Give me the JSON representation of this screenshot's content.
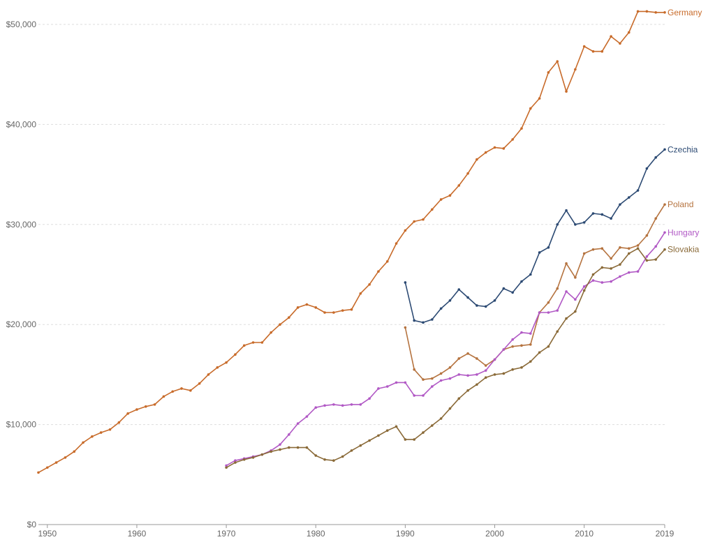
{
  "chart_data": {
    "type": "line",
    "title": "",
    "xlabel": "",
    "ylabel": "",
    "xlim": [
      1949,
      2019
    ],
    "ylim": [
      0,
      50000
    ],
    "grid": "horizontal dashed",
    "legend": "inline labels at line ends",
    "x_ticks": [
      1950,
      1960,
      1970,
      1980,
      1990,
      2000,
      2010,
      2019
    ],
    "y_ticks": [
      0,
      10000,
      20000,
      30000,
      40000,
      50000
    ],
    "y_tick_labels": [
      "$0",
      "$10,000",
      "$20,000",
      "$30,000",
      "$40,000",
      "$50,000"
    ],
    "series": [
      {
        "name": "Germany",
        "color": "#c86b2a",
        "x": [
          1949,
          1950,
          1951,
          1952,
          1953,
          1954,
          1955,
          1956,
          1957,
          1958,
          1959,
          1960,
          1961,
          1962,
          1963,
          1964,
          1965,
          1966,
          1967,
          1968,
          1969,
          1970,
          1971,
          1972,
          1973,
          1974,
          1975,
          1976,
          1977,
          1978,
          1979,
          1980,
          1981,
          1982,
          1983,
          1984,
          1985,
          1986,
          1987,
          1988,
          1989,
          1990,
          1991,
          1992,
          1993,
          1994,
          1995,
          1996,
          1997,
          1998,
          1999,
          2000,
          2001,
          2002,
          2003,
          2004,
          2005,
          2006,
          2007,
          2008,
          2009,
          2010,
          2011,
          2012,
          2013,
          2014,
          2015,
          2016,
          2017,
          2018,
          2019
        ],
        "values": [
          5200,
          5700,
          6200,
          6700,
          7300,
          8200,
          8800,
          9200,
          9500,
          10200,
          11100,
          11500,
          11800,
          12000,
          12800,
          13300,
          13600,
          13400,
          14100,
          15000,
          15700,
          16200,
          17000,
          17900,
          18200,
          18200,
          19200,
          20000,
          20700,
          21700,
          22000,
          21700,
          21200,
          21200,
          21400,
          21500,
          23100,
          24000,
          25300,
          26300,
          28100,
          29400,
          30300,
          30500,
          31500,
          32500,
          32900,
          33900,
          35100,
          36500,
          37200,
          37700,
          37600,
          38500,
          39600,
          41600,
          42600,
          45200,
          46300,
          43300,
          45500,
          47800,
          47300,
          47300,
          48800,
          48100,
          49200,
          51300,
          51300,
          51200,
          51200
        ]
      },
      {
        "name": "Czechia",
        "color": "#2c4a73",
        "x": [
          1990,
          1991,
          1992,
          1993,
          1994,
          1995,
          1996,
          1997,
          1998,
          1999,
          2000,
          2001,
          2002,
          2003,
          2004,
          2005,
          2006,
          2007,
          2008,
          2009,
          2010,
          2011,
          2012,
          2013,
          2014,
          2015,
          2016,
          2017,
          2018,
          2019
        ],
        "values": [
          24200,
          20400,
          20200,
          20500,
          21600,
          22400,
          23500,
          22700,
          21900,
          21800,
          22400,
          23600,
          23200,
          24300,
          25000,
          27200,
          27700,
          30000,
          31400,
          30000,
          30200,
          31100,
          31000,
          30600,
          32000,
          32700,
          33400,
          35600,
          36700,
          37500
        ]
      },
      {
        "name": "Poland",
        "color": "#b5733f",
        "x": [
          1990,
          1991,
          1992,
          1993,
          1994,
          1995,
          1996,
          1997,
          1998,
          1999,
          2000,
          2001,
          2002,
          2003,
          2004,
          2005,
          2006,
          2007,
          2008,
          2009,
          2010,
          2011,
          2012,
          2013,
          2014,
          2015,
          2016,
          2017,
          2018,
          2019
        ],
        "values": [
          19700,
          15500,
          14500,
          14600,
          15100,
          15700,
          16600,
          17100,
          16600,
          15900,
          16500,
          17500,
          17800,
          17900,
          18000,
          21200,
          22200,
          23600,
          26100,
          24700,
          27100,
          27500,
          27600,
          26600,
          27700,
          27600,
          27900,
          28900,
          30600,
          32000
        ]
      },
      {
        "name": "Hungary",
        "color": "#b159c5",
        "x": [
          1970,
          1971,
          1972,
          1973,
          1974,
          1975,
          1976,
          1977,
          1978,
          1979,
          1980,
          1981,
          1982,
          1983,
          1984,
          1985,
          1986,
          1987,
          1988,
          1989,
          1990,
          1991,
          1992,
          1993,
          1994,
          1995,
          1996,
          1997,
          1998,
          1999,
          2000,
          2001,
          2002,
          2003,
          2004,
          2005,
          2006,
          2007,
          2008,
          2009,
          2010,
          2011,
          2012,
          2013,
          2014,
          2015,
          2016,
          2017,
          2018,
          2019
        ],
        "values": [
          5900,
          6400,
          6600,
          6800,
          7000,
          7400,
          8000,
          9000,
          10100,
          10800,
          11700,
          11900,
          12000,
          11900,
          12000,
          12000,
          12600,
          13600,
          13800,
          14200,
          14200,
          12900,
          12900,
          13800,
          14400,
          14600,
          15000,
          14900,
          15000,
          15400,
          16500,
          17500,
          18500,
          19200,
          19100,
          21200,
          21200,
          21400,
          23300,
          22500,
          23800,
          24400,
          24200,
          24300,
          24800,
          25200,
          25300,
          26800,
          27800,
          29200
        ]
      },
      {
        "name": "Slovakia",
        "color": "#8a6a38",
        "x": [
          1970,
          1971,
          1972,
          1973,
          1974,
          1975,
          1976,
          1977,
          1978,
          1979,
          1980,
          1981,
          1982,
          1983,
          1984,
          1985,
          1986,
          1987,
          1988,
          1989,
          1990,
          1991,
          1992,
          1993,
          1994,
          1995,
          1996,
          1997,
          1998,
          1999,
          2000,
          2001,
          2002,
          2003,
          2004,
          2005,
          2006,
          2007,
          2008,
          2009,
          2010,
          2011,
          2012,
          2013,
          2014,
          2015,
          2016,
          2017,
          2018,
          2019
        ],
        "values": [
          5700,
          6200,
          6500,
          6700,
          7000,
          7300,
          7500,
          7700,
          7700,
          7700,
          6900,
          6500,
          6400,
          6800,
          7400,
          7900,
          8400,
          8900,
          9400,
          9800,
          8500,
          8500,
          9200,
          9900,
          10600,
          11600,
          12600,
          13400,
          14000,
          14700,
          15000,
          15100,
          15500,
          15700,
          16300,
          17200,
          17800,
          19300,
          20600,
          21300,
          23400,
          25000,
          25700,
          25600,
          26000,
          27100,
          27600,
          26400,
          26500,
          27500
        ]
      }
    ]
  }
}
